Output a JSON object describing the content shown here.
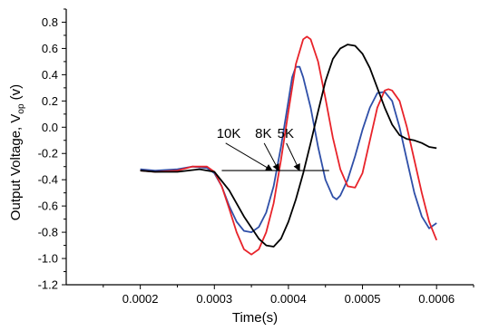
{
  "chart_data": {
    "type": "line",
    "title": "",
    "xlabel": "Time(s)",
    "ylabel": "Output Voltage, V",
    "ylabel_sub": "op",
    "ylabel_unit": " (v)",
    "xlim": [
      0.0001,
      0.00065
    ],
    "ylim": [
      -1.2,
      0.9
    ],
    "xticks": [
      0.0002,
      0.0003,
      0.0004,
      0.0005,
      0.0006
    ],
    "xtick_labels": [
      "0.0002",
      "0.0003",
      "0.0004",
      "0.0005",
      "0.0006"
    ],
    "yticks": [
      -1.2,
      -1.0,
      -0.8,
      -0.6,
      -0.4,
      -0.2,
      0.0,
      0.2,
      0.4,
      0.6,
      0.8
    ],
    "ytick_labels": [
      "-1.2",
      "-1.0",
      "-0.8",
      "-0.6",
      "-0.4",
      "-0.2",
      "0.0",
      "0.2",
      "0.4",
      "0.6",
      "0.8"
    ],
    "grid": false,
    "legend": "none",
    "series": [
      {
        "name": "10K",
        "color": "#2f4fa8",
        "points": [
          [
            0.0002,
            -0.32
          ],
          [
            0.00022,
            -0.33
          ],
          [
            0.00025,
            -0.32
          ],
          [
            0.00027,
            -0.3
          ],
          [
            0.00029,
            -0.31
          ],
          [
            0.0003,
            -0.35
          ],
          [
            0.00031,
            -0.45
          ],
          [
            0.00032,
            -0.6
          ],
          [
            0.00033,
            -0.72
          ],
          [
            0.00034,
            -0.79
          ],
          [
            0.00035,
            -0.8
          ],
          [
            0.00036,
            -0.76
          ],
          [
            0.00037,
            -0.65
          ],
          [
            0.00038,
            -0.45
          ],
          [
            0.00039,
            -0.15
          ],
          [
            0.0004,
            0.2
          ],
          [
            0.000405,
            0.38
          ],
          [
            0.00041,
            0.46
          ],
          [
            0.000415,
            0.46
          ],
          [
            0.00042,
            0.38
          ],
          [
            0.00043,
            0.15
          ],
          [
            0.00044,
            -0.15
          ],
          [
            0.00045,
            -0.4
          ],
          [
            0.00046,
            -0.53
          ],
          [
            0.000465,
            -0.55
          ],
          [
            0.00047,
            -0.52
          ],
          [
            0.00048,
            -0.4
          ],
          [
            0.00049,
            -0.22
          ],
          [
            0.0005,
            -0.02
          ],
          [
            0.00051,
            0.15
          ],
          [
            0.00052,
            0.26
          ],
          [
            0.00053,
            0.27
          ],
          [
            0.00054,
            0.2
          ],
          [
            0.00055,
            0.0
          ],
          [
            0.00056,
            -0.25
          ],
          [
            0.00057,
            -0.5
          ],
          [
            0.00058,
            -0.68
          ],
          [
            0.00059,
            -0.77
          ],
          [
            0.0006,
            -0.73
          ]
        ]
      },
      {
        "name": "8K",
        "color": "#e8232a",
        "points": [
          [
            0.0002,
            -0.33
          ],
          [
            0.00022,
            -0.34
          ],
          [
            0.00025,
            -0.33
          ],
          [
            0.00027,
            -0.3
          ],
          [
            0.00029,
            -0.3
          ],
          [
            0.0003,
            -0.34
          ],
          [
            0.00031,
            -0.45
          ],
          [
            0.00032,
            -0.62
          ],
          [
            0.00033,
            -0.8
          ],
          [
            0.00034,
            -0.93
          ],
          [
            0.00035,
            -0.97
          ],
          [
            0.00036,
            -0.93
          ],
          [
            0.00037,
            -0.8
          ],
          [
            0.00038,
            -0.58
          ],
          [
            0.00039,
            -0.25
          ],
          [
            0.0004,
            0.12
          ],
          [
            0.00041,
            0.48
          ],
          [
            0.00042,
            0.67
          ],
          [
            0.000425,
            0.69
          ],
          [
            0.00043,
            0.67
          ],
          [
            0.00044,
            0.5
          ],
          [
            0.00045,
            0.22
          ],
          [
            0.00046,
            -0.08
          ],
          [
            0.00047,
            -0.32
          ],
          [
            0.00048,
            -0.45
          ],
          [
            0.00049,
            -0.46
          ],
          [
            0.0005,
            -0.35
          ],
          [
            0.00051,
            -0.1
          ],
          [
            0.00052,
            0.15
          ],
          [
            0.00053,
            0.28
          ],
          [
            0.000535,
            0.29
          ],
          [
            0.00054,
            0.28
          ],
          [
            0.00055,
            0.2
          ],
          [
            0.00056,
            0.0
          ],
          [
            0.00057,
            -0.25
          ],
          [
            0.00058,
            -0.5
          ],
          [
            0.00059,
            -0.72
          ],
          [
            0.0006,
            -0.86
          ]
        ]
      },
      {
        "name": "5K",
        "color": "#000000",
        "points": [
          [
            0.0002,
            -0.33
          ],
          [
            0.00022,
            -0.34
          ],
          [
            0.00025,
            -0.34
          ],
          [
            0.00028,
            -0.32
          ],
          [
            0.0003,
            -0.34
          ],
          [
            0.00032,
            -0.48
          ],
          [
            0.00034,
            -0.68
          ],
          [
            0.00036,
            -0.85
          ],
          [
            0.00037,
            -0.9
          ],
          [
            0.00038,
            -0.91
          ],
          [
            0.00039,
            -0.85
          ],
          [
            0.0004,
            -0.72
          ],
          [
            0.00041,
            -0.55
          ],
          [
            0.00042,
            -0.35
          ],
          [
            0.00043,
            -0.12
          ],
          [
            0.00044,
            0.12
          ],
          [
            0.00045,
            0.35
          ],
          [
            0.00046,
            0.52
          ],
          [
            0.00047,
            0.6
          ],
          [
            0.00048,
            0.63
          ],
          [
            0.00049,
            0.62
          ],
          [
            0.0005,
            0.56
          ],
          [
            0.00051,
            0.45
          ],
          [
            0.00052,
            0.3
          ],
          [
            0.00053,
            0.15
          ],
          [
            0.00054,
            0.02
          ],
          [
            0.00055,
            -0.06
          ],
          [
            0.00056,
            -0.09
          ],
          [
            0.00057,
            -0.1
          ],
          [
            0.00058,
            -0.12
          ],
          [
            0.00059,
            -0.15
          ],
          [
            0.0006,
            -0.16
          ]
        ]
      }
    ],
    "annotations": {
      "reference_line": {
        "x1": 0.00031,
        "x2": 0.000455,
        "y": -0.33
      },
      "labels": [
        {
          "text": "10K",
          "x": 0.000303,
          "y": -0.08,
          "arrow_to": [
            0.000378,
            -0.33
          ]
        },
        {
          "text": "8K",
          "x": 0.000355,
          "y": -0.08,
          "arrow_to": [
            0.000387,
            -0.33
          ]
        },
        {
          "text": "5K",
          "x": 0.000385,
          "y": -0.08,
          "arrow_to": [
            0.000415,
            -0.33
          ]
        }
      ]
    }
  }
}
